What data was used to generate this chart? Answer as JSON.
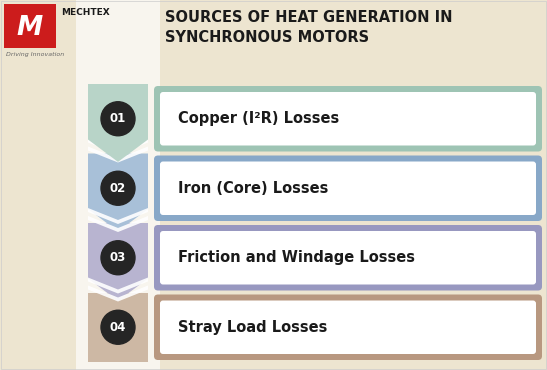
{
  "title_line1": "SOURCES OF HEAT GENERATION IN",
  "title_line2": "SYNCHRONOUS MOTORS",
  "background_color": "#ede5d0",
  "title_color": "#1a1a1a",
  "items": [
    {
      "number": "01",
      "text": "Copper (I²R) Losses",
      "chevron_color": "#b8d4c8",
      "box_border_color": "#9ec4b4",
      "number_bg": "#252525"
    },
    {
      "number": "02",
      "text": "Iron (Core) Losses",
      "chevron_color": "#a8c0d8",
      "box_border_color": "#88a8c8",
      "number_bg": "#252525"
    },
    {
      "number": "03",
      "text": "Friction and Windage Losses",
      "chevron_color": "#b8b4d0",
      "box_border_color": "#9898c0",
      "number_bg": "#252525"
    },
    {
      "number": "04",
      "text": "Stray Load Losses",
      "chevron_color": "#cdb8a4",
      "box_border_color": "#b89880",
      "number_bg": "#252525"
    }
  ],
  "logo_red": "#cc1c1c",
  "logo_dark": "#1a1a1a",
  "white_strip_color": "#f8f5ee",
  "left_bg_color": "#ede5d0"
}
